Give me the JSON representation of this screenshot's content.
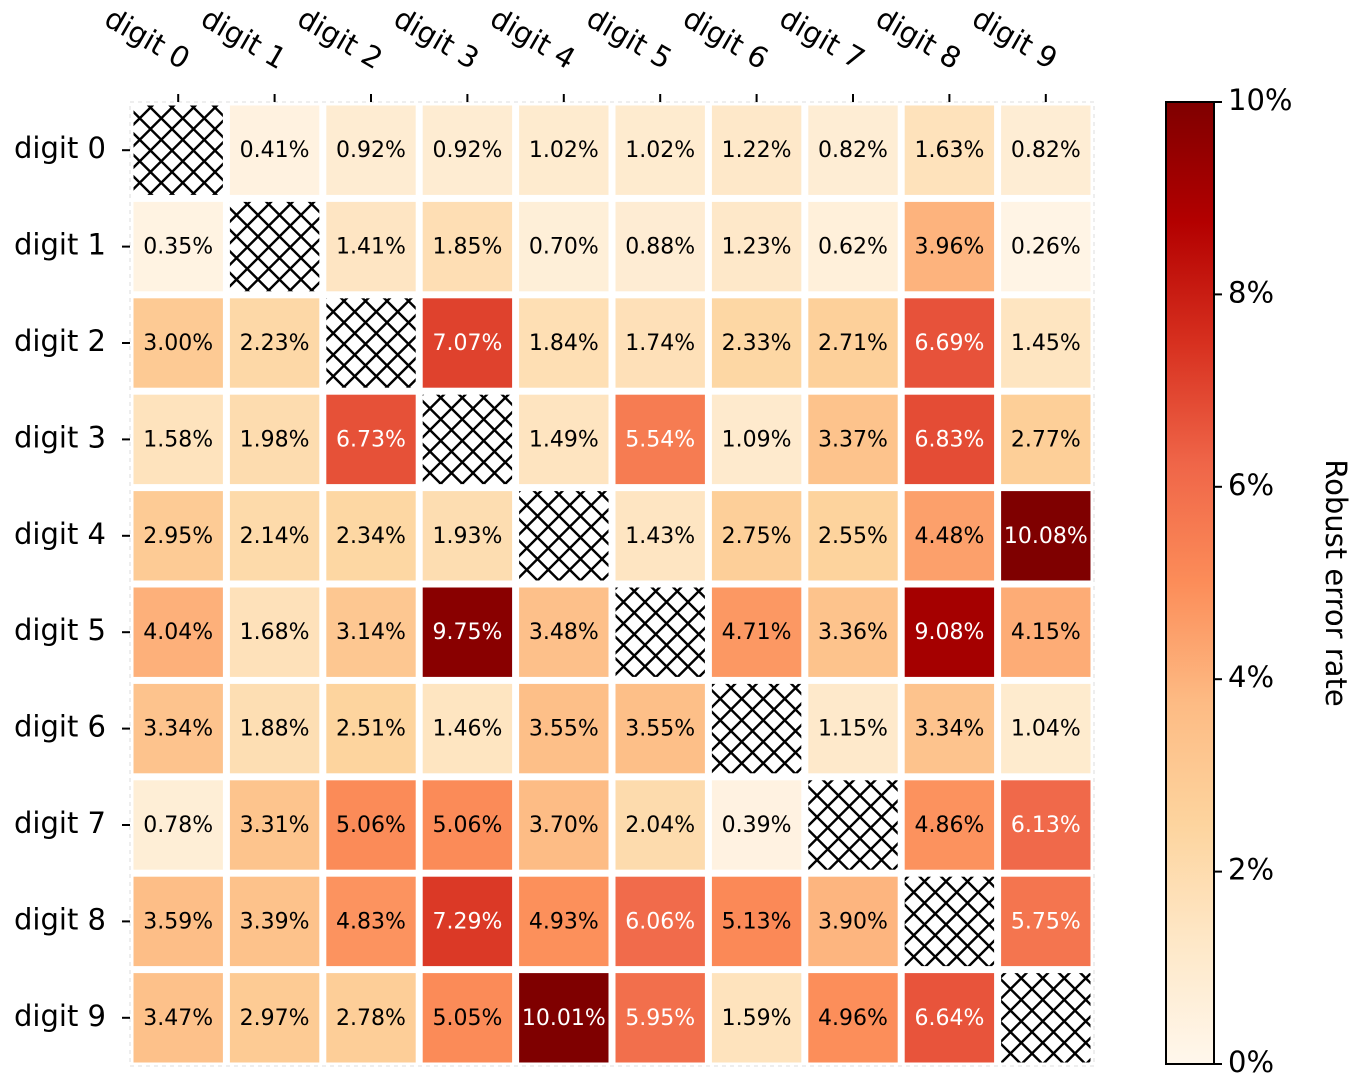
{
  "chart_data": {
    "type": "heatmap",
    "rows": [
      "digit 0",
      "digit 1",
      "digit 2",
      "digit 3",
      "digit 4",
      "digit 5",
      "digit 6",
      "digit 7",
      "digit 8",
      "digit 9"
    ],
    "columns": [
      "digit 0",
      "digit 1",
      "digit 2",
      "digit 3",
      "digit 4",
      "digit 5",
      "digit 6",
      "digit 7",
      "digit 8",
      "digit 9"
    ],
    "values": [
      [
        null,
        0.41,
        0.92,
        0.92,
        1.02,
        1.02,
        1.22,
        0.82,
        1.63,
        0.82
      ],
      [
        0.35,
        null,
        1.41,
        1.85,
        0.7,
        0.88,
        1.23,
        0.62,
        3.96,
        0.26
      ],
      [
        3.0,
        2.23,
        null,
        7.07,
        1.84,
        1.74,
        2.33,
        2.71,
        6.69,
        1.45
      ],
      [
        1.58,
        1.98,
        6.73,
        null,
        1.49,
        5.54,
        1.09,
        3.37,
        6.83,
        2.77
      ],
      [
        2.95,
        2.14,
        2.34,
        1.93,
        null,
        1.43,
        2.75,
        2.55,
        4.48,
        10.08
      ],
      [
        4.04,
        1.68,
        3.14,
        9.75,
        3.48,
        null,
        4.71,
        3.36,
        9.08,
        4.15
      ],
      [
        3.34,
        1.88,
        2.51,
        1.46,
        3.55,
        3.55,
        null,
        1.15,
        3.34,
        1.04
      ],
      [
        0.78,
        3.31,
        5.06,
        5.06,
        3.7,
        2.04,
        0.39,
        null,
        4.86,
        6.13
      ],
      [
        3.59,
        3.39,
        4.83,
        7.29,
        4.93,
        6.06,
        5.13,
        3.9,
        null,
        5.75
      ],
      [
        3.47,
        2.97,
        2.78,
        5.05,
        10.01,
        5.95,
        1.59,
        4.96,
        6.64,
        null
      ]
    ],
    "value_format": "percent",
    "diagonal": "hatched",
    "colorbar": {
      "label": "Robust error rate",
      "range": [
        0,
        10
      ],
      "ticks": [
        "0%",
        "2%",
        "4%",
        "6%",
        "8%",
        "10%"
      ],
      "tick_values": [
        0,
        2,
        4,
        6,
        8,
        10
      ],
      "colormap": "OrRd"
    }
  }
}
